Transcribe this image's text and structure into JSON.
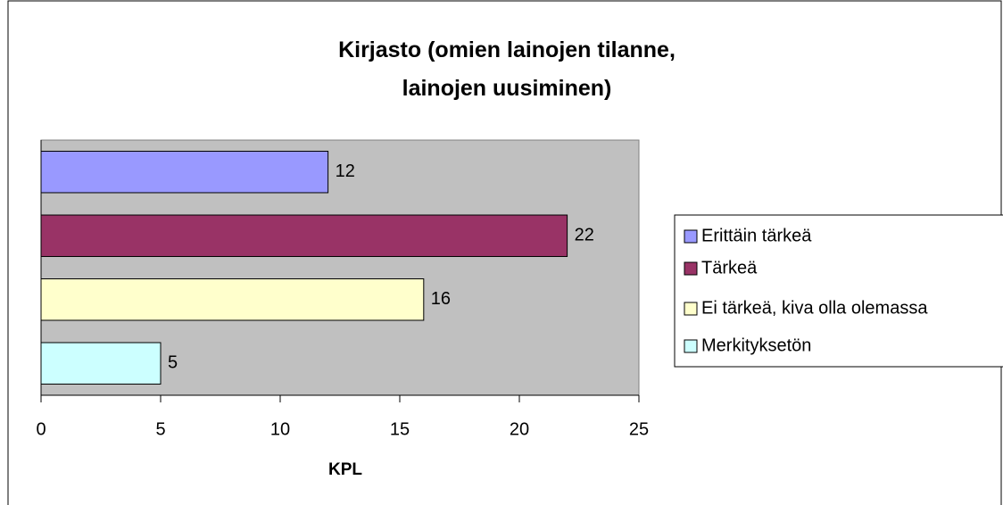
{
  "chart_data": {
    "type": "bar",
    "orientation": "horizontal",
    "title": "Kirjasto (omien lainojen tilanne,\nlainojen uusiminen)",
    "xlabel": "KPL",
    "series": [
      {
        "name": "Erittäin tärkeä",
        "color": "#9999ff",
        "values": [
          12
        ]
      },
      {
        "name": "Tärkeä",
        "color": "#993366",
        "values": [
          22
        ]
      },
      {
        "name": "Ei tärkeä, kiva olla olemassa",
        "color": "#ffffcc",
        "values": [
          16
        ]
      },
      {
        "name": "Merkityksetön",
        "color": "#ccffff",
        "values": [
          5
        ]
      }
    ],
    "xlim": [
      0,
      25
    ],
    "xticks": [
      0,
      5,
      10,
      15,
      20,
      25
    ],
    "plot_background": "#c0c0c0",
    "legend": "right"
  }
}
